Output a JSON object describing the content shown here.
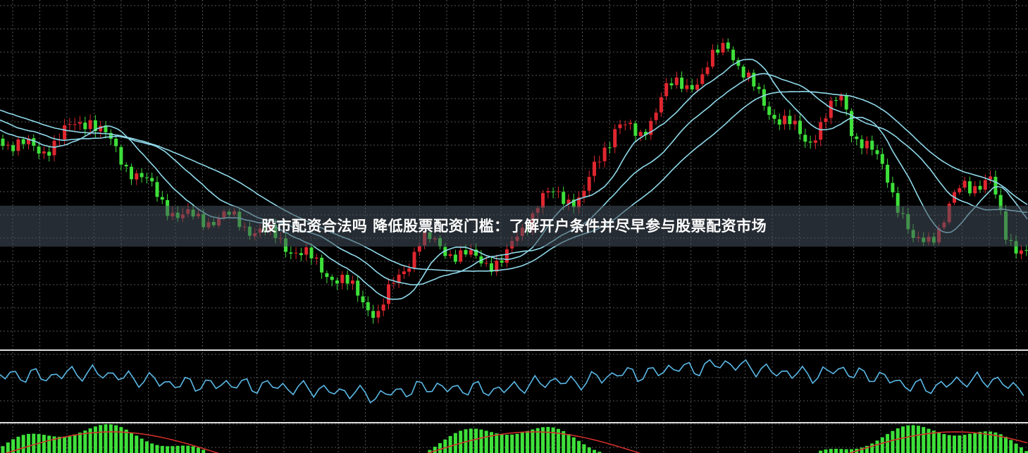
{
  "header": {
    "title": "股市配资合法吗 降低股票配资门槛：了解开户条件并尽早参与股票配资市场"
  }
}
